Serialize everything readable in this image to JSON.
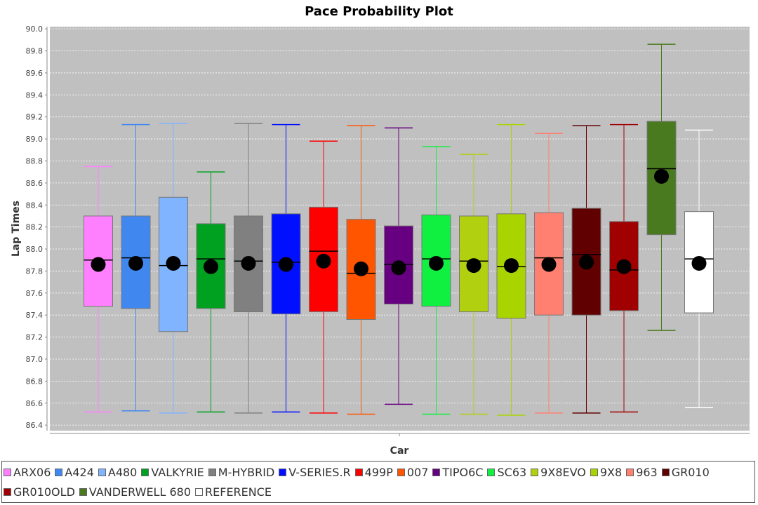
{
  "chart_data": {
    "type": "box",
    "title": "Pace Probability Plot",
    "xlabel": "Car",
    "ylabel": "Lap Times",
    "ylim": [
      86.35,
      90.02
    ],
    "yticks": [
      "86.4",
      "86.6",
      "86.8",
      "87.0",
      "87.2",
      "87.4",
      "87.6",
      "87.8",
      "88.0",
      "88.2",
      "88.4",
      "88.6",
      "88.8",
      "89.0",
      "89.2",
      "89.4",
      "89.6",
      "89.8",
      "90.0"
    ],
    "grid": true,
    "legend": "bottom",
    "series": [
      {
        "name": "ARX06",
        "color": "#ff80ff",
        "whisker_low": 86.52,
        "q1": 87.48,
        "median": 87.9,
        "q3": 88.3,
        "whisker_high": 88.75,
        "mean": 87.86
      },
      {
        "name": "A424",
        "color": "#4088f0",
        "whisker_low": 86.53,
        "q1": 87.46,
        "median": 87.92,
        "q3": 88.3,
        "whisker_high": 89.13,
        "mean": 87.87
      },
      {
        "name": "A480",
        "color": "#80b4ff",
        "whisker_low": 86.51,
        "q1": 87.25,
        "median": 87.85,
        "q3": 88.47,
        "whisker_high": 89.14,
        "mean": 87.87
      },
      {
        "name": "VALKYRIE",
        "color": "#00a020",
        "whisker_low": 86.52,
        "q1": 87.46,
        "median": 87.91,
        "q3": 88.23,
        "whisker_high": 88.7,
        "mean": 87.84
      },
      {
        "name": "M-HYBRID",
        "color": "#808080",
        "whisker_low": 86.51,
        "q1": 87.43,
        "median": 87.89,
        "q3": 88.3,
        "whisker_high": 89.14,
        "mean": 87.87
      },
      {
        "name": "V-SERIES.R",
        "color": "#0010ff",
        "whisker_low": 86.52,
        "q1": 87.41,
        "median": 87.88,
        "q3": 88.32,
        "whisker_high": 89.13,
        "mean": 87.86
      },
      {
        "name": "499P",
        "color": "#ff0000",
        "whisker_low": 86.51,
        "q1": 87.43,
        "median": 87.98,
        "q3": 88.38,
        "whisker_high": 88.98,
        "mean": 87.89
      },
      {
        "name": "007",
        "color": "#ff5500",
        "whisker_low": 86.5,
        "q1": 87.36,
        "median": 87.78,
        "q3": 88.27,
        "whisker_high": 89.12,
        "mean": 87.82
      },
      {
        "name": "TIPO6C",
        "color": "#660080",
        "whisker_low": 86.59,
        "q1": 87.5,
        "median": 87.86,
        "q3": 88.21,
        "whisker_high": 89.1,
        "mean": 87.83
      },
      {
        "name": "SC63",
        "color": "#10f040",
        "whisker_low": 86.5,
        "q1": 87.48,
        "median": 87.91,
        "q3": 88.31,
        "whisker_high": 88.93,
        "mean": 87.87
      },
      {
        "name": "9X8EVO",
        "color": "#b0d010",
        "whisker_low": 86.5,
        "q1": 87.43,
        "median": 87.89,
        "q3": 88.3,
        "whisker_high": 88.86,
        "mean": 87.85
      },
      {
        "name": "9X8",
        "color": "#aad400",
        "whisker_low": 86.49,
        "q1": 87.37,
        "median": 87.84,
        "q3": 88.32,
        "whisker_high": 89.13,
        "mean": 87.85
      },
      {
        "name": "963",
        "color": "#ff8070",
        "whisker_low": 86.51,
        "q1": 87.4,
        "median": 87.92,
        "q3": 88.33,
        "whisker_high": 89.05,
        "mean": 87.86
      },
      {
        "name": "GR010",
        "color": "#600000",
        "whisker_low": 86.51,
        "q1": 87.4,
        "median": 87.95,
        "q3": 88.37,
        "whisker_high": 89.12,
        "mean": 87.88
      },
      {
        "name": "GR010OLD",
        "color": "#a00000",
        "whisker_low": 86.52,
        "q1": 87.44,
        "median": 87.81,
        "q3": 88.25,
        "whisker_high": 89.13,
        "mean": 87.84
      },
      {
        "name": "VANDERWELL 680",
        "color": "#4a7a20",
        "whisker_low": 87.26,
        "q1": 88.13,
        "median": 88.73,
        "q3": 89.16,
        "whisker_high": 89.86,
        "mean": 88.66
      },
      {
        "name": "REFERENCE",
        "color": "#ffffff",
        "whisker_low": 86.56,
        "q1": 87.42,
        "median": 87.91,
        "q3": 88.34,
        "whisker_high": 89.08,
        "mean": 87.87
      }
    ]
  }
}
